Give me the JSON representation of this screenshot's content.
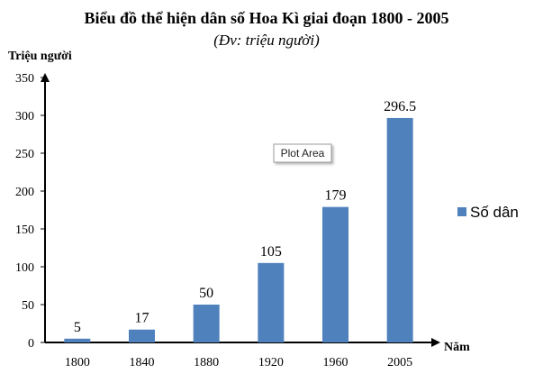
{
  "chart_data": {
    "type": "bar",
    "title": "Biểu đồ thể hiện dân số Hoa Kì giai đoạn 1800 - 2005",
    "subtitle": "(Đv: triệu người)",
    "ylabel": "Triệu người",
    "xlabel": "Năm",
    "categories": [
      "1800",
      "1840",
      "1880",
      "1920",
      "1960",
      "2005"
    ],
    "series": [
      {
        "name": "Số dân",
        "values": [
          5,
          17,
          50,
          105,
          179,
          296.5
        ],
        "color": "#4f81bd"
      }
    ],
    "data_labels": [
      "5",
      "17",
      "50",
      "105",
      "179",
      "296.5"
    ],
    "ylim": [
      0,
      350
    ],
    "yticks": [
      0,
      50,
      100,
      150,
      200,
      250,
      300,
      350
    ],
    "grid": false,
    "legend": "right"
  },
  "tooltip": {
    "label": "Plot Area"
  }
}
